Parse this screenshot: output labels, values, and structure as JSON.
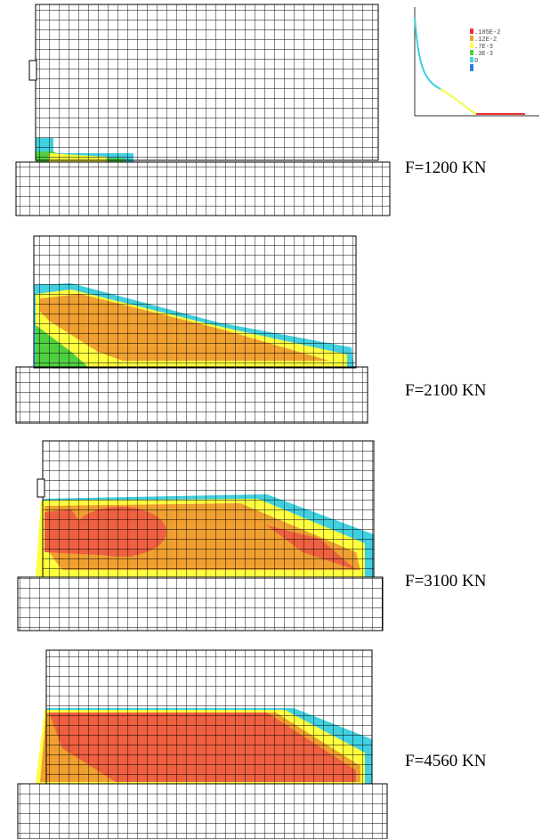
{
  "panels": [
    {
      "label": "F=1200 KN"
    },
    {
      "label": "F=2100 KN"
    },
    {
      "label": "F=3100 KN"
    },
    {
      "label": "F=4560 KN"
    }
  ],
  "legend": {
    "items": [
      ".105E-2",
      ".12E-2",
      ".7E-3",
      ".3E-3",
      "0"
    ]
  }
}
